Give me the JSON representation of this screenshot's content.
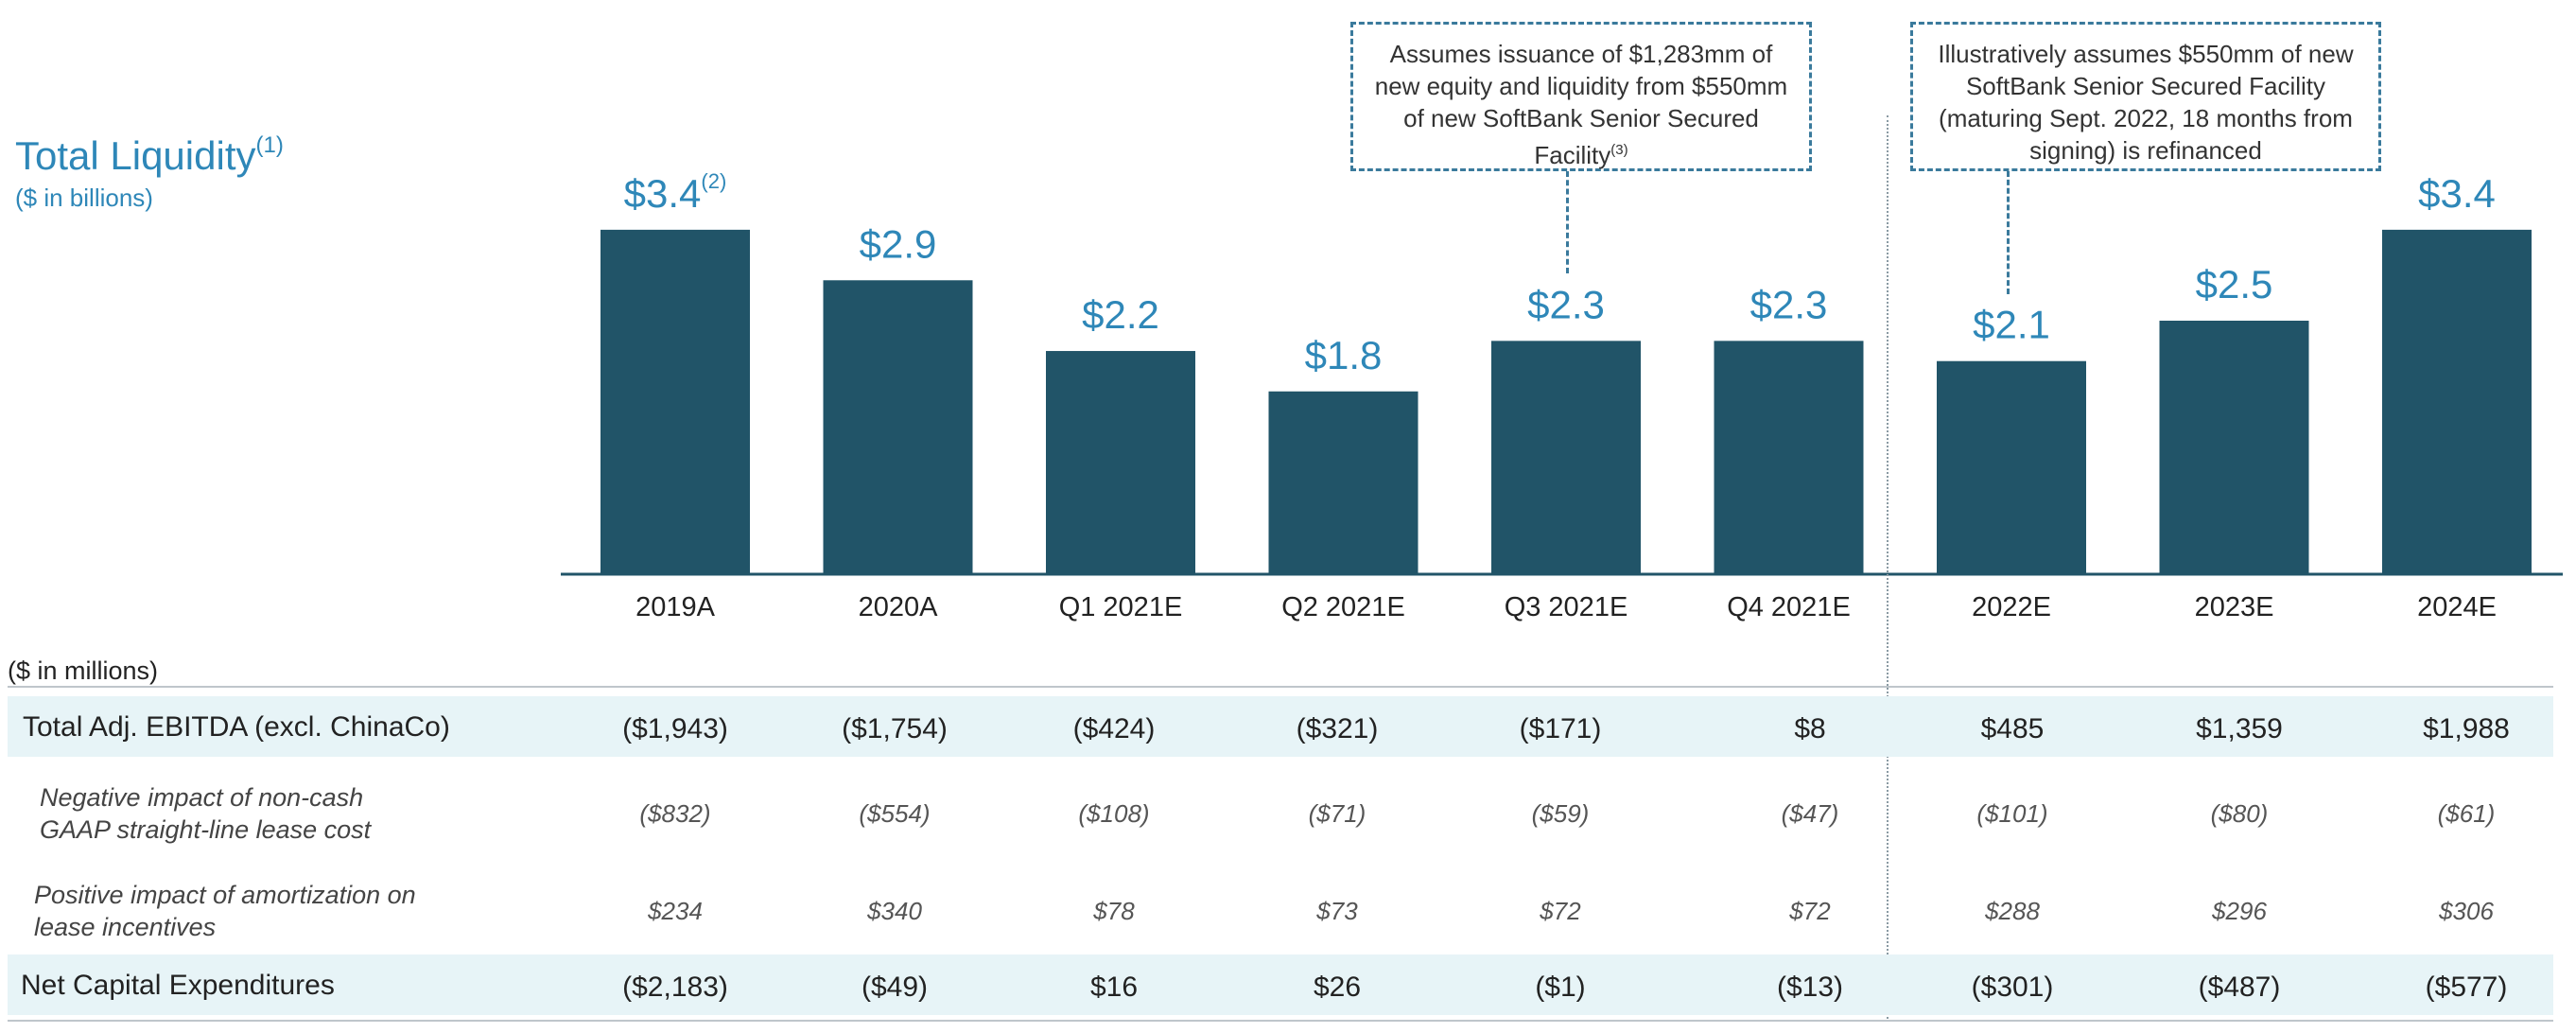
{
  "chart_data": {
    "type": "bar",
    "title": "Total Liquidity",
    "title_superscript": "(1)",
    "subtitle": "($ in billions)",
    "categories": [
      "2019A",
      "2020A",
      "Q1 2021E",
      "Q2 2021E",
      "Q3 2021E",
      "Q4 2021E",
      "2022E",
      "2023E",
      "2024E"
    ],
    "values": [
      3.4,
      2.9,
      2.2,
      1.8,
      2.3,
      2.3,
      2.1,
      2.5,
      3.4
    ],
    "data_labels": [
      "$3.4",
      "$2.9",
      "$2.2",
      "$1.8",
      "$2.3",
      "$2.3",
      "$2.1",
      "$2.5",
      "$3.4"
    ],
    "first_label_superscript": "(2)",
    "ylim": [
      0,
      3.7
    ],
    "grid": false,
    "bar_color": "#215468",
    "label_color": "#2e87b8",
    "axis_color": "#215468"
  },
  "annotations": [
    {
      "text": "Assumes issuance of $1,283mm of new equity and liquidity from $550mm of new SoftBank Senior Secured Facility",
      "superscript": "(3)",
      "points_to": "Q3 2021E"
    },
    {
      "text": "Illustratively assumes $550mm of new SoftBank Senior Secured Facility (maturing Sept. 2022, 18 months from signing) is refinanced",
      "points_to": "2022E"
    }
  ],
  "table": {
    "units": "($ in millions)",
    "rows": [
      {
        "label": "Total Adj. EBITDA (excl. ChinaCo)",
        "style": "bold",
        "values": [
          "($1,943)",
          "($1,754)",
          "($424)",
          "($321)",
          "($171)",
          "$8",
          "$485",
          "$1,359",
          "$1,988"
        ]
      },
      {
        "label": "Negative impact of non-cash GAAP straight-line lease cost",
        "style": "italic",
        "values": [
          "($832)",
          "($554)",
          "($108)",
          "($71)",
          "($59)",
          "($47)",
          "($101)",
          "($80)",
          "($61)"
        ]
      },
      {
        "label": "Positive impact of amortization on lease incentives",
        "style": "italic",
        "values": [
          "$234",
          "$340",
          "$78",
          "$73",
          "$72",
          "$72",
          "$288",
          "$296",
          "$306"
        ]
      },
      {
        "label": "Net Capital Expenditures",
        "style": "bold",
        "values": [
          "($2,183)",
          "($49)",
          "$16",
          "$26",
          "($1)",
          "($13)",
          "($301)",
          "($487)",
          "($577)"
        ]
      }
    ]
  },
  "colors": {
    "accent": "#2e87b8",
    "bar": "#215468",
    "band": "#e7f4f7",
    "callout_border": "#3a7a9c"
  }
}
